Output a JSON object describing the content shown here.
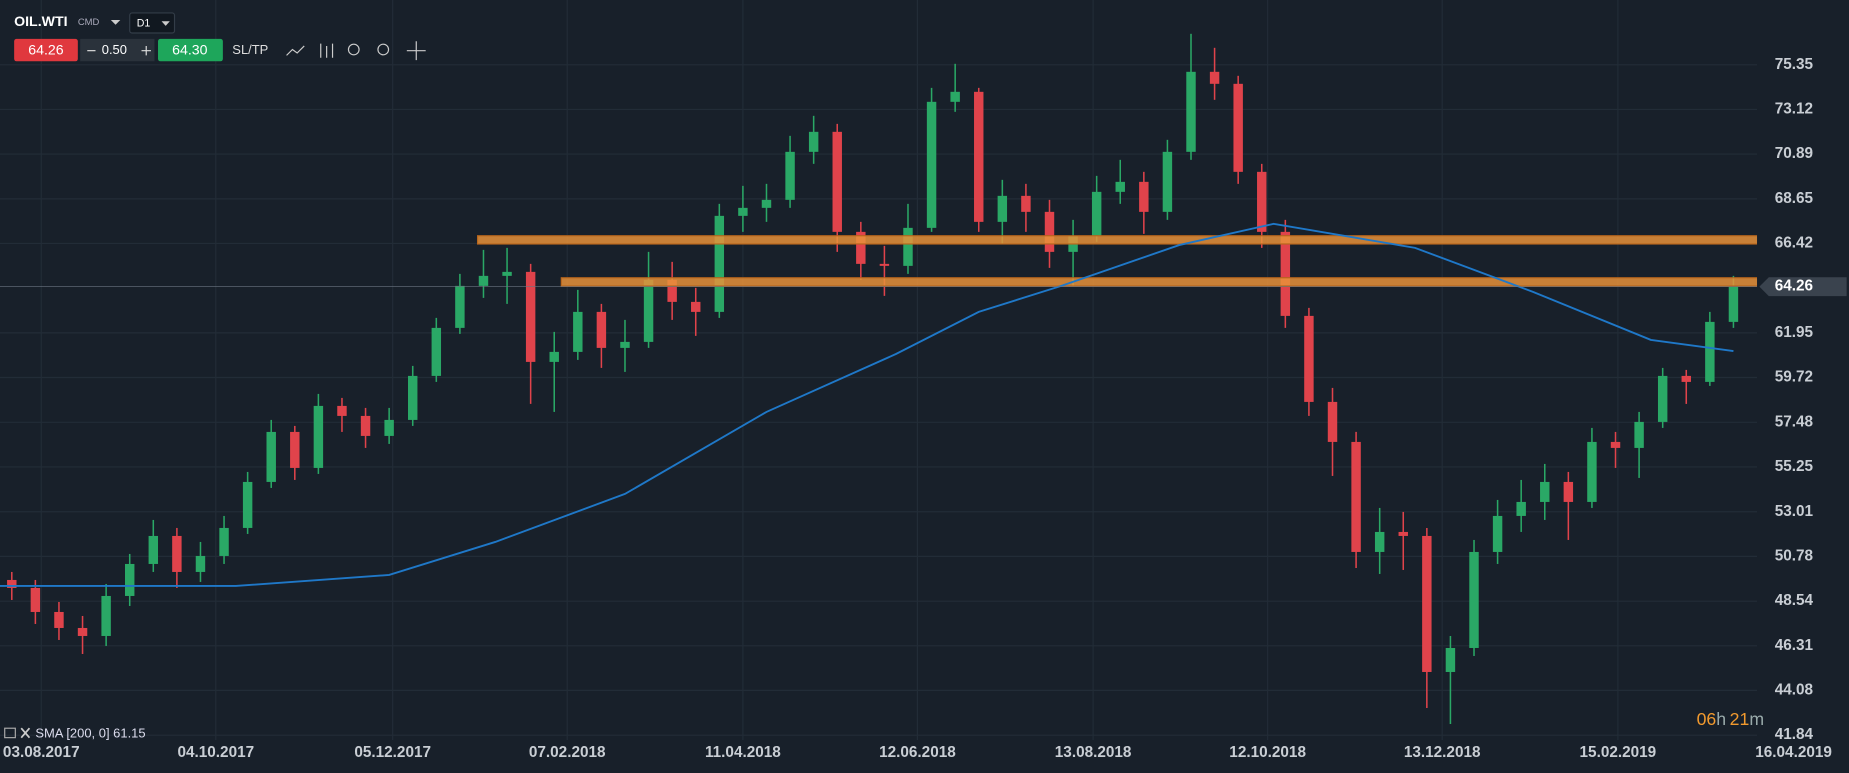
{
  "toolbar": {
    "symbol": "OIL.WTI",
    "market": "CMD",
    "timeframe": "D1",
    "sell_price": "64.26",
    "volume": "0.50",
    "buy_price": "64.30",
    "sltp": "SL/TP"
  },
  "chart_data": {
    "type": "candlestick",
    "up_color": "#2aa866",
    "down_color": "#e0434b",
    "candles": {
      "open": [
        49.6,
        49.2,
        48.0,
        47.2,
        46.8,
        48.8,
        50.4,
        51.8,
        50.0,
        50.8,
        52.2,
        54.5,
        57.0,
        55.2,
        58.3,
        57.8,
        56.8,
        57.6,
        59.8,
        62.2,
        64.3,
        64.8,
        65.0,
        60.5,
        61.0,
        63.0,
        61.2,
        61.5,
        64.6,
        63.5,
        63.0,
        67.8,
        68.2,
        68.6,
        71.0,
        72.0,
        67.0,
        65.4,
        65.3,
        67.2,
        73.5,
        74.0,
        67.5,
        68.8,
        68.0,
        66.0,
        66.8,
        69.0,
        69.5,
        68.0,
        71.0,
        75.0,
        74.4,
        70.0,
        67.0,
        62.8,
        58.5,
        56.5,
        51.0,
        52.0,
        51.8,
        45.0,
        46.2,
        51.0,
        52.8,
        53.5,
        54.5,
        53.5,
        56.5,
        56.2,
        57.5,
        59.8,
        59.5,
        62.5
      ],
      "high": [
        50.0,
        49.6,
        48.5,
        47.8,
        49.4,
        50.9,
        52.6,
        52.2,
        51.5,
        52.8,
        55.0,
        57.6,
        57.3,
        58.9,
        58.7,
        58.2,
        58.2,
        60.3,
        62.7,
        64.9,
        66.1,
        66.2,
        65.4,
        62.0,
        64.1,
        63.4,
        62.6,
        66.0,
        65.5,
        64.2,
        68.4,
        69.3,
        69.4,
        71.8,
        72.8,
        72.4,
        67.5,
        66.3,
        68.4,
        74.2,
        75.4,
        74.2,
        69.6,
        69.4,
        68.6,
        67.6,
        69.8,
        70.6,
        70.0,
        71.6,
        76.9,
        76.2,
        74.8,
        70.4,
        67.6,
        63.2,
        59.2,
        57.0,
        53.2,
        53.0,
        52.2,
        46.8,
        51.6,
        53.6,
        54.6,
        55.4,
        55.0,
        57.2,
        57.0,
        58.0,
        60.2,
        60.1,
        63.0,
        64.8
      ],
      "low": [
        48.6,
        47.4,
        46.6,
        45.9,
        46.3,
        48.3,
        50.0,
        49.2,
        49.5,
        50.4,
        51.9,
        54.2,
        54.6,
        54.9,
        57.0,
        56.2,
        56.4,
        57.3,
        59.5,
        61.9,
        63.7,
        63.4,
        58.4,
        58.0,
        60.6,
        60.2,
        60.0,
        61.2,
        62.6,
        61.8,
        62.7,
        67.0,
        67.5,
        68.2,
        70.4,
        66.0,
        64.6,
        63.8,
        64.9,
        67.0,
        73.0,
        67.0,
        66.4,
        67.0,
        65.2,
        64.3,
        66.5,
        68.4,
        66.9,
        67.6,
        70.6,
        73.6,
        69.4,
        66.2,
        62.2,
        57.8,
        54.8,
        50.2,
        49.9,
        50.1,
        43.2,
        42.4,
        45.8,
        50.4,
        52.0,
        52.6,
        51.6,
        53.2,
        55.2,
        54.7,
        57.2,
        58.4,
        59.3,
        62.2
      ],
      "close": [
        49.2,
        48.0,
        47.2,
        46.8,
        48.8,
        50.4,
        51.8,
        50.0,
        50.8,
        52.2,
        54.5,
        57.0,
        55.2,
        58.3,
        57.8,
        56.8,
        57.6,
        59.8,
        62.2,
        64.3,
        64.8,
        65.0,
        60.5,
        61.0,
        63.0,
        61.2,
        61.5,
        64.6,
        63.5,
        63.0,
        67.8,
        68.2,
        68.6,
        71.0,
        72.0,
        67.0,
        65.4,
        65.3,
        67.2,
        73.5,
        74.0,
        67.5,
        68.8,
        68.0,
        66.0,
        66.8,
        69.0,
        69.5,
        68.0,
        71.0,
        75.0,
        74.4,
        70.0,
        67.0,
        62.8,
        58.5,
        56.5,
        51.0,
        52.0,
        51.8,
        45.0,
        46.2,
        51.0,
        52.8,
        53.5,
        54.5,
        53.5,
        56.5,
        56.2,
        57.5,
        59.8,
        59.5,
        62.5,
        64.26
      ]
    },
    "sma": {
      "name": "SMA [200, 0] 61.15",
      "color": "#1f78c8",
      "x": [
        0,
        10,
        16.5,
        21,
        26.5,
        32.5,
        38,
        41.5,
        45,
        50,
        54,
        60,
        65,
        70,
        73.5
      ],
      "values": [
        49.3,
        49.3,
        49.85,
        51.5,
        53.9,
        58.0,
        60.9,
        63.0,
        64.3,
        66.34,
        67.4,
        66.2,
        64.0,
        61.6,
        61.04
      ]
    },
    "levels": [
      {
        "value": 66.6,
        "start": 20.25
      },
      {
        "value": 64.5,
        "start": 23.8
      }
    ],
    "level_color": "#e8923a",
    "last_price": 64.26,
    "xlim": [
      0,
      78.4
    ],
    "xticks": [
      {
        "value": 1.75,
        "label": "03.08.2017"
      },
      {
        "value": 9.15,
        "label": "04.10.2017"
      },
      {
        "value": 16.65,
        "label": "05.12.2017"
      },
      {
        "value": 24.05,
        "label": "07.02.2018"
      },
      {
        "value": 31.5,
        "label": "11.04.2018"
      },
      {
        "value": 38.9,
        "label": "12.06.2018"
      },
      {
        "value": 46.35,
        "label": "13.08.2018"
      },
      {
        "value": 53.75,
        "label": "12.10.2018"
      },
      {
        "value": 61.15,
        "label": "13.12.2018"
      },
      {
        "value": 68.6,
        "label": "15.02.2019"
      },
      {
        "value": 76.05,
        "label": "16.04.2019"
      }
    ],
    "ylim": [
      41.6,
      78.59
    ],
    "yticks": [
      75.35,
      73.12,
      70.89,
      68.65,
      66.42,
      61.95,
      59.72,
      57.48,
      55.25,
      53.01,
      50.78,
      48.54,
      46.31,
      44.08,
      41.84
    ],
    "grid": true,
    "timer": {
      "hours": "06",
      "hours_unit": "h",
      "minutes": "21",
      "minutes_unit": "m"
    }
  }
}
